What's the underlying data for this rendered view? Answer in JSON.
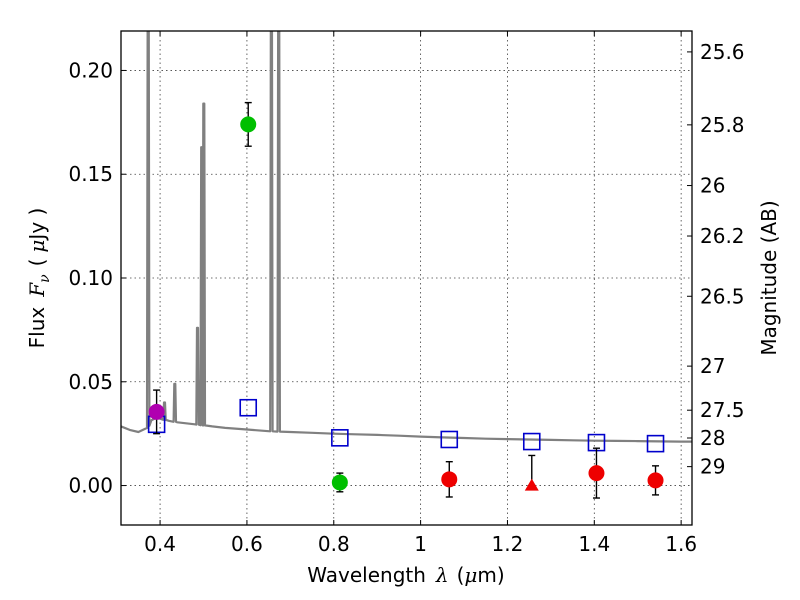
{
  "chart_data": {
    "type": "scatter",
    "xlabel": "Wavelength",
    "xlabel_symbol": "λ",
    "xlabel_unit_prefix": "(",
    "xlabel_unit_mu": "μ",
    "xlabel_unit_rest": "m)",
    "ylabel": "Flux",
    "ylabel_symbol": "F",
    "ylabel_subscript": "ν",
    "ylabel_open": "(",
    "ylabel_unit_mu": "μ",
    "ylabel_unit_rest": "Jy )",
    "y2label": "Magnitude (AB)",
    "xlim": [
      0.31,
      1.625
    ],
    "ylim": [
      -0.019,
      0.219
    ],
    "grid": true,
    "x_ticks": [
      {
        "value": 0.4,
        "label": "0.4"
      },
      {
        "value": 0.6,
        "label": "0.6"
      },
      {
        "value": 0.8,
        "label": "0.8"
      },
      {
        "value": 1.0,
        "label": "1"
      },
      {
        "value": 1.2,
        "label": "1.2"
      },
      {
        "value": 1.4,
        "label": "1.4"
      },
      {
        "value": 1.6,
        "label": "1.6"
      }
    ],
    "y_ticks": [
      {
        "value": 0.0,
        "label": "0.00"
      },
      {
        "value": 0.05,
        "label": "0.05"
      },
      {
        "value": 0.1,
        "label": "0.10"
      },
      {
        "value": 0.15,
        "label": "0.15"
      },
      {
        "value": 0.2,
        "label": "0.20"
      }
    ],
    "y2_ticks": [
      {
        "mag": 25.6,
        "label": "25.6"
      },
      {
        "mag": 25.8,
        "label": "25.8"
      },
      {
        "mag": 26.0,
        "label": "26"
      },
      {
        "mag": 26.2,
        "label": "26.2"
      },
      {
        "mag": 26.5,
        "label": "26.5"
      },
      {
        "mag": 27.0,
        "label": "27"
      },
      {
        "mag": 27.5,
        "label": "27.5"
      },
      {
        "mag": 28.0,
        "label": "28"
      },
      {
        "mag": 29.0,
        "label": "29"
      }
    ],
    "model_spectrum": {
      "name": "model SED",
      "color": "#808080",
      "continuum": [
        [
          0.31,
          0.0285
        ],
        [
          0.33,
          0.0268
        ],
        [
          0.35,
          0.0258
        ],
        [
          0.37,
          0.0278
        ],
        [
          0.38,
          0.0315
        ],
        [
          0.39,
          0.0325
        ],
        [
          0.4,
          0.0322
        ],
        [
          0.42,
          0.0312
        ],
        [
          0.44,
          0.0305
        ],
        [
          0.46,
          0.03
        ],
        [
          0.48,
          0.0295
        ],
        [
          0.5,
          0.029
        ],
        [
          0.52,
          0.0285
        ],
        [
          0.55,
          0.0278
        ],
        [
          0.6,
          0.027
        ],
        [
          0.65,
          0.0262
        ],
        [
          0.7,
          0.0258
        ],
        [
          0.75,
          0.0254
        ],
        [
          0.8,
          0.025
        ],
        [
          0.85,
          0.0247
        ],
        [
          0.9,
          0.0244
        ],
        [
          0.95,
          0.024
        ],
        [
          1.0,
          0.0236
        ],
        [
          1.05,
          0.0232
        ],
        [
          1.1,
          0.0229
        ],
        [
          1.15,
          0.0226
        ],
        [
          1.2,
          0.0224
        ],
        [
          1.25,
          0.0222
        ],
        [
          1.3,
          0.022
        ],
        [
          1.35,
          0.0218
        ],
        [
          1.4,
          0.0216
        ],
        [
          1.45,
          0.0215
        ],
        [
          1.5,
          0.0214
        ],
        [
          1.55,
          0.0213
        ],
        [
          1.6,
          0.0212
        ],
        [
          1.625,
          0.0212
        ]
      ],
      "emission_lines": [
        {
          "x": 0.3727,
          "peak": 0.24
        },
        {
          "x": 0.4102,
          "peak": 0.04
        },
        {
          "x": 0.434,
          "peak": 0.049
        },
        {
          "x": 0.4861,
          "peak": 0.076
        },
        {
          "x": 0.4959,
          "peak": 0.163
        },
        {
          "x": 0.5007,
          "peak": 0.184
        },
        {
          "x": 0.6563,
          "peak": 0.24
        },
        {
          "x": 0.6731,
          "peak": 0.24
        }
      ]
    },
    "series": [
      {
        "name": "model photometry",
        "marker": "open-square",
        "color": "#0000cc",
        "points": [
          {
            "x": 0.392,
            "y": 0.0295
          },
          {
            "x": 0.603,
            "y": 0.0375
          },
          {
            "x": 0.814,
            "y": 0.023
          },
          {
            "x": 1.066,
            "y": 0.0222
          },
          {
            "x": 1.256,
            "y": 0.0212
          },
          {
            "x": 1.405,
            "y": 0.0207
          },
          {
            "x": 1.541,
            "y": 0.0202
          }
        ]
      },
      {
        "name": "purple photometry",
        "marker": "circle",
        "color": "#b000b0",
        "points": [
          {
            "x": 0.392,
            "y": 0.0355,
            "err": 0.0105
          }
        ]
      },
      {
        "name": "green photometry",
        "marker": "circle",
        "color": "#00bf00",
        "points": [
          {
            "x": 0.603,
            "y": 0.174,
            "err": 0.0105
          },
          {
            "x": 0.814,
            "y": 0.0015,
            "err": 0.0045
          }
        ]
      },
      {
        "name": "red photometry",
        "marker": "circle",
        "color": "#ee0000",
        "points": [
          {
            "x": 1.066,
            "y": 0.003,
            "err": 0.0085
          },
          {
            "x": 1.405,
            "y": 0.006,
            "err": 0.012
          },
          {
            "x": 1.541,
            "y": 0.0025,
            "err": 0.007
          }
        ]
      },
      {
        "name": "red upper limit",
        "marker": "triangle",
        "color": "#ee0000",
        "points": [
          {
            "x": 1.256,
            "y": 0.0,
            "upper": 0.0145
          }
        ]
      }
    ]
  }
}
